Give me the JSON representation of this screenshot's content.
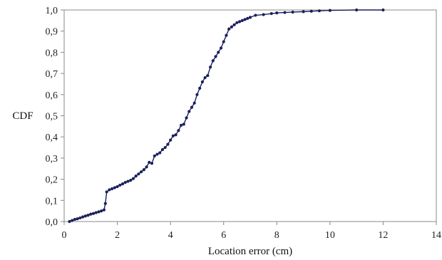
{
  "chart_data": {
    "type": "line",
    "title": "",
    "xlabel": "Location error (cm)",
    "ylabel": "CDF",
    "xlim": [
      0,
      14
    ],
    "ylim": [
      0,
      1
    ],
    "x_ticks": [
      0,
      2,
      4,
      6,
      8,
      10,
      12,
      14
    ],
    "y_ticks": [
      0,
      0.1,
      0.2,
      0.3,
      0.4,
      0.5,
      0.6,
      0.7,
      0.8,
      0.9,
      1.0
    ],
    "x_tick_labels": [
      "0",
      "2",
      "4",
      "6",
      "8",
      "10",
      "12",
      "14"
    ],
    "y_tick_labels": [
      "0,0",
      "0,1",
      "0,2",
      "0,3",
      "0,4",
      "0,5",
      "0,6",
      "0,7",
      "0,8",
      "0,9",
      "1,0"
    ],
    "grid": false,
    "legend": "none",
    "series": [
      {
        "color": "#1a1f5c",
        "marker": "dot",
        "x": [
          0.2,
          0.3,
          0.4,
          0.5,
          0.6,
          0.7,
          0.8,
          0.9,
          1.0,
          1.1,
          1.2,
          1.3,
          1.4,
          1.5,
          1.55,
          1.6,
          1.7,
          1.8,
          1.9,
          2.0,
          2.1,
          2.2,
          2.3,
          2.4,
          2.5,
          2.6,
          2.7,
          2.8,
          2.9,
          3.0,
          3.1,
          3.2,
          3.3,
          3.4,
          3.5,
          3.6,
          3.7,
          3.8,
          3.9,
          4.0,
          4.1,
          4.2,
          4.3,
          4.4,
          4.5,
          4.6,
          4.7,
          4.8,
          4.9,
          5.0,
          5.1,
          5.2,
          5.3,
          5.4,
          5.5,
          5.6,
          5.7,
          5.8,
          5.9,
          6.0,
          6.1,
          6.2,
          6.3,
          6.4,
          6.5,
          6.6,
          6.7,
          6.8,
          6.9,
          7.0,
          7.2,
          7.5,
          7.8,
          8.0,
          8.3,
          8.6,
          9.0,
          9.3,
          9.6,
          10.0,
          11.0,
          12.0
        ],
        "y": [
          0.0,
          0.005,
          0.01,
          0.013,
          0.017,
          0.022,
          0.026,
          0.03,
          0.035,
          0.038,
          0.042,
          0.046,
          0.05,
          0.055,
          0.085,
          0.14,
          0.15,
          0.155,
          0.16,
          0.165,
          0.172,
          0.178,
          0.185,
          0.19,
          0.195,
          0.203,
          0.215,
          0.225,
          0.235,
          0.245,
          0.258,
          0.28,
          0.275,
          0.31,
          0.318,
          0.325,
          0.34,
          0.35,
          0.365,
          0.385,
          0.405,
          0.41,
          0.43,
          0.455,
          0.46,
          0.49,
          0.52,
          0.54,
          0.56,
          0.6,
          0.63,
          0.66,
          0.68,
          0.69,
          0.73,
          0.76,
          0.78,
          0.8,
          0.82,
          0.85,
          0.88,
          0.91,
          0.92,
          0.93,
          0.94,
          0.945,
          0.95,
          0.955,
          0.96,
          0.965,
          0.975,
          0.978,
          0.983,
          0.986,
          0.988,
          0.99,
          0.992,
          0.994,
          0.996,
          0.998,
          1.0,
          1.0
        ]
      }
    ]
  }
}
